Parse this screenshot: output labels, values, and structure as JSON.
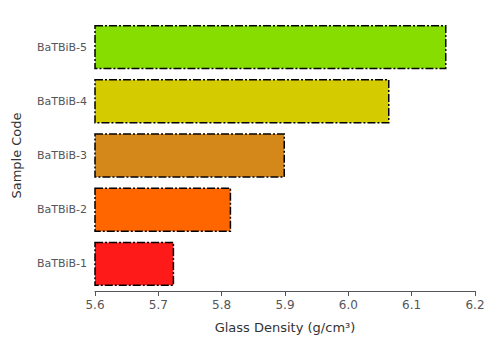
{
  "chart_data": {
    "type": "bar",
    "orientation": "horizontal",
    "categories": [
      "BaTBiB-1",
      "BaTBiB-2",
      "BaTBiB-3",
      "BaTBiB-4",
      "BaTBiB-5"
    ],
    "values": [
      5.725,
      5.815,
      5.9,
      6.065,
      6.155
    ],
    "colors": [
      "#ff1a1a",
      "#ff6600",
      "#d4881a",
      "#d4cc00",
      "#88dd00"
    ],
    "xlabel": "Glass Density (g/cm³)",
    "ylabel": "Sample Code",
    "xlim": [
      5.6,
      6.2
    ],
    "xticks": [
      5.6,
      5.7,
      5.8,
      5.9,
      {
        "value": 6,
        "label": "6.0"
      },
      6.1,
      6.2
    ],
    "grid": false
  }
}
